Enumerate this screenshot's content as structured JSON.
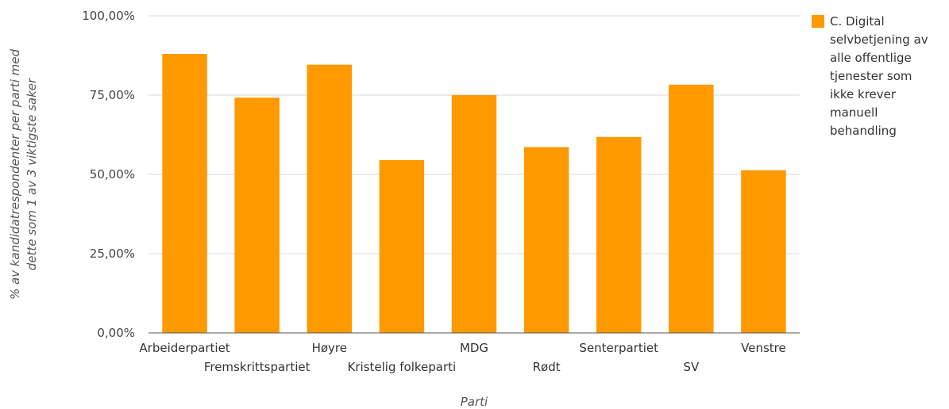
{
  "chart_data": {
    "type": "bar",
    "categories": [
      "Arbeiderpartiet",
      "Fremskrittspartiet",
      "Høyre",
      "Kristelig folkeparti",
      "MDG",
      "Rødt",
      "Senterpartiet",
      "SV",
      "Venstre"
    ],
    "series": [
      {
        "name": "C. Digital selvbetjening av alle offentlige tjenester som ikke krever manuell behandling",
        "values": [
          88,
          74.2,
          84.6,
          54.5,
          75,
          58.6,
          61.8,
          78.3,
          51.3
        ],
        "color": "#ff9900"
      }
    ],
    "y_ticks": [
      "0,00%",
      "25,00%",
      "50,00%",
      "75,00%",
      "100,00%"
    ],
    "ylim": [
      0,
      100
    ],
    "xlabel": "Parti",
    "ylabel": "% av kandidatrespondenter per parti med dette som 1 av 3 viktigste saker",
    "grid": true,
    "legend_position": "right"
  },
  "legend": {
    "label": "C. Digital\nselvbetjening av\nalle offentlige\ntjenester som\nikke krever\nmanuell\nbehandling"
  }
}
